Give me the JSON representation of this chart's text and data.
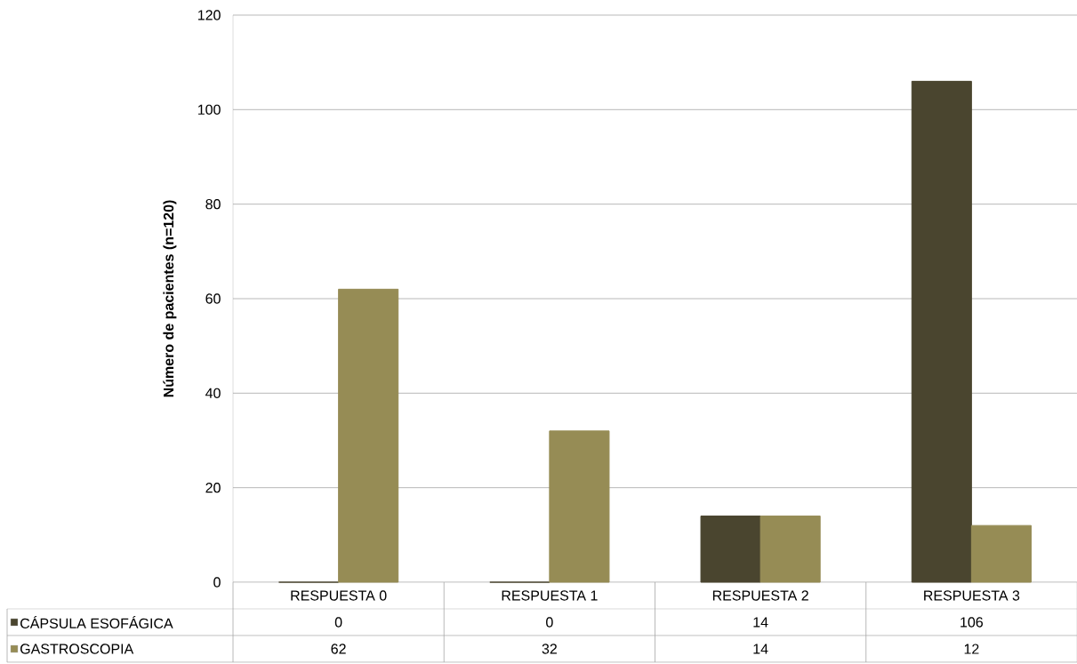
{
  "chart_data": {
    "type": "bar",
    "ylabel": "Número de pacientes  (n=120)",
    "categories": [
      "RESPUESTA  0",
      "RESPUESTA  1",
      "RESPUESTA  2",
      "RESPUESTA  3"
    ],
    "series": [
      {
        "name": "CÁPSULA ESOFÁGICA",
        "color": "#4a452f",
        "values": [
          0,
          0,
          14,
          106
        ]
      },
      {
        "name": "GASTROSCOPIA",
        "color": "#968c55",
        "values": [
          62,
          32,
          14,
          12
        ]
      }
    ],
    "ylim": [
      0,
      120
    ],
    "yticks": [
      0,
      20,
      40,
      60,
      80,
      100,
      120
    ],
    "grid": "y",
    "legend": "bottom",
    "data_labels": true
  }
}
